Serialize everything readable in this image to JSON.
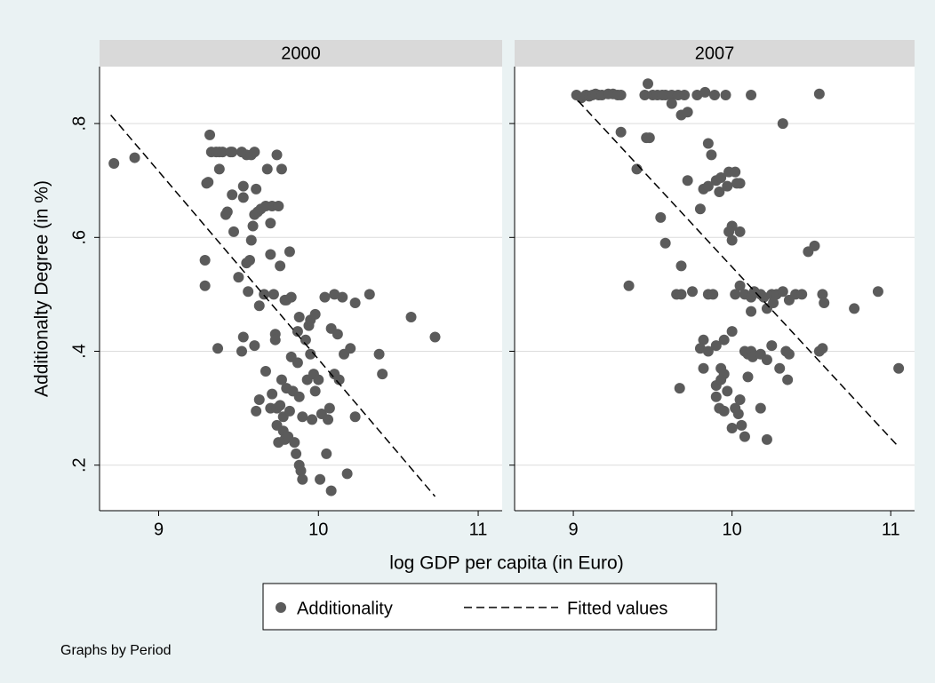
{
  "chart_data": {
    "type": "scatter",
    "x_label": "log GDP per capita (in Euro)",
    "y_label": "Additionalty Degree (in %)",
    "note": "Graphs by Period",
    "xlim": [
      8.63,
      11.15
    ],
    "ylim": [
      0.12,
      0.9
    ],
    "xticks": [
      9,
      10,
      11
    ],
    "yticks": [
      {
        "value": 0.2,
        "label": ".2"
      },
      {
        "value": 0.4,
        "label": ".4"
      },
      {
        "value": 0.6,
        "label": ".6"
      },
      {
        "value": 0.8,
        "label": ".8"
      }
    ],
    "grid": true,
    "series": [
      {
        "name": "Additionality",
        "color": "#5b5b5b"
      },
      {
        "name": "Fitted values",
        "color": "#000000"
      }
    ],
    "panels": [
      {
        "title": "2000",
        "series": [
          {
            "x": [
              8.72,
              8.85,
              9.3,
              9.31,
              9.32,
              9.33,
              9.36,
              9.38,
              9.38,
              9.4,
              9.42,
              9.43,
              9.46,
              9.46,
              9.47,
              9.5,
              9.52,
              9.53,
              9.53,
              9.55,
              9.55,
              9.56,
              9.57,
              9.58,
              9.58,
              9.59,
              9.6,
              9.61,
              9.62,
              9.63,
              9.64,
              9.66,
              9.67,
              9.68,
              9.7,
              9.7,
              9.71,
              9.72,
              9.74,
              9.75,
              9.76,
              9.77,
              9.79,
              9.8,
              9.82,
              9.83,
              9.29,
              9.29,
              9.37,
              9.53,
              9.52,
              9.6,
              9.61,
              9.63,
              9.67,
              9.7,
              9.71,
              9.73,
              9.73,
              9.74,
              9.74,
              9.75,
              9.76,
              9.77,
              9.78,
              9.78,
              9.79,
              9.8,
              9.81,
              9.82,
              9.83,
              9.84,
              9.85,
              9.86,
              9.87,
              9.87,
              9.88,
              9.88,
              9.89,
              9.9,
              9.9,
              9.92,
              9.93,
              9.94,
              9.95,
              9.95,
              9.96,
              9.97,
              9.98,
              9.98,
              10.0,
              10.01,
              10.02,
              10.04,
              10.05,
              10.06,
              10.07,
              10.08,
              10.1,
              10.1,
              10.12,
              10.13,
              10.15,
              10.16,
              10.18,
              10.2,
              10.23,
              10.23,
              10.32,
              10.38,
              10.4,
              10.58,
              10.73,
              10.08,
              9.88,
              9.6,
              9.45
            ],
            "values": [
              0.73,
              0.74,
              0.695,
              0.697,
              0.78,
              0.75,
              0.75,
              0.72,
              0.75,
              0.75,
              0.64,
              0.645,
              0.75,
              0.675,
              0.61,
              0.53,
              0.75,
              0.69,
              0.67,
              0.745,
              0.555,
              0.505,
              0.56,
              0.745,
              0.595,
              0.62,
              0.64,
              0.685,
              0.645,
              0.48,
              0.65,
              0.5,
              0.655,
              0.72,
              0.625,
              0.57,
              0.655,
              0.5,
              0.745,
              0.655,
              0.55,
              0.72,
              0.49,
              0.49,
              0.575,
              0.495,
              0.56,
              0.515,
              0.405,
              0.425,
              0.4,
              0.41,
              0.295,
              0.315,
              0.365,
              0.3,
              0.325,
              0.43,
              0.42,
              0.3,
              0.27,
              0.24,
              0.305,
              0.35,
              0.285,
              0.26,
              0.245,
              0.335,
              0.25,
              0.295,
              0.39,
              0.33,
              0.24,
              0.22,
              0.435,
              0.38,
              0.32,
              0.2,
              0.19,
              0.175,
              0.285,
              0.42,
              0.35,
              0.445,
              0.455,
              0.395,
              0.28,
              0.36,
              0.465,
              0.33,
              0.35,
              0.175,
              0.29,
              0.495,
              0.22,
              0.28,
              0.3,
              0.44,
              0.5,
              0.36,
              0.43,
              0.35,
              0.495,
              0.395,
              0.185,
              0.405,
              0.485,
              0.285,
              0.5,
              0.395,
              0.36,
              0.46,
              0.425,
              0.155,
              0.46,
              0.75,
              0.75
            ]
          },
          {
            "x": [
              8.7,
              10.73
            ],
            "values": [
              0.815,
              0.145
            ]
          }
        ]
      },
      {
        "title": "2007",
        "series": [
          {
            "x": [
              9.02,
              9.05,
              9.08,
              9.1,
              9.12,
              9.14,
              9.16,
              9.18,
              9.22,
              9.25,
              9.28,
              9.3,
              9.45,
              9.47,
              9.5,
              9.53,
              9.56,
              9.58,
              9.62,
              9.66,
              9.7,
              9.78,
              9.83,
              9.89,
              9.96,
              10.12,
              10.55,
              9.62,
              9.68,
              9.72,
              9.3,
              9.46,
              9.48,
              10.32,
              9.4,
              9.72,
              9.85,
              9.87,
              9.9,
              9.93,
              9.98,
              10.02,
              10.05,
              9.82,
              9.85,
              9.92,
              9.97,
              10.03,
              10.0,
              10.05,
              9.55,
              9.58,
              9.8,
              9.98,
              10.0,
              9.35,
              9.68,
              9.65,
              9.68,
              9.75,
              9.85,
              9.88,
              10.02,
              10.05,
              10.08,
              10.12,
              10.14,
              10.18,
              10.2,
              10.25,
              10.28,
              10.32,
              10.36,
              10.4,
              10.44,
              10.22,
              10.26,
              10.12,
              10.48,
              10.52,
              10.57,
              10.58,
              10.77,
              10.92,
              10.55,
              10.57,
              11.05,
              9.82,
              9.8,
              9.85,
              9.9,
              9.95,
              10.0,
              10.08,
              10.1,
              10.12,
              10.13,
              10.18,
              10.22,
              10.25,
              10.3,
              10.35,
              10.34,
              10.36,
              9.93,
              9.95,
              9.9,
              9.93,
              9.97,
              9.9,
              9.92,
              9.95,
              10.02,
              10.05,
              10.04,
              10.06,
              10.0,
              10.08,
              10.18,
              10.22,
              9.82,
              9.67,
              10.1
            ],
            "values": [
              0.85,
              0.845,
              0.85,
              0.848,
              0.85,
              0.852,
              0.85,
              0.85,
              0.852,
              0.852,
              0.85,
              0.85,
              0.85,
              0.87,
              0.85,
              0.85,
              0.85,
              0.85,
              0.85,
              0.85,
              0.85,
              0.85,
              0.855,
              0.85,
              0.85,
              0.85,
              0.852,
              0.835,
              0.815,
              0.82,
              0.785,
              0.775,
              0.775,
              0.8,
              0.72,
              0.7,
              0.765,
              0.745,
              0.7,
              0.705,
              0.715,
              0.715,
              0.695,
              0.685,
              0.69,
              0.68,
              0.69,
              0.695,
              0.62,
              0.61,
              0.635,
              0.59,
              0.65,
              0.61,
              0.595,
              0.515,
              0.55,
              0.5,
              0.5,
              0.505,
              0.5,
              0.5,
              0.5,
              0.515,
              0.5,
              0.495,
              0.505,
              0.5,
              0.495,
              0.5,
              0.5,
              0.505,
              0.49,
              0.5,
              0.5,
              0.475,
              0.485,
              0.47,
              0.575,
              0.585,
              0.5,
              0.485,
              0.475,
              0.505,
              0.4,
              0.405,
              0.37,
              0.42,
              0.405,
              0.4,
              0.41,
              0.42,
              0.435,
              0.4,
              0.395,
              0.4,
              0.39,
              0.395,
              0.385,
              0.41,
              0.37,
              0.35,
              0.4,
              0.395,
              0.37,
              0.36,
              0.34,
              0.35,
              0.33,
              0.32,
              0.3,
              0.295,
              0.3,
              0.315,
              0.29,
              0.27,
              0.265,
              0.25,
              0.3,
              0.245,
              0.37,
              0.335,
              0.355
            ]
          },
          {
            "x": [
              9.03,
              11.05
            ],
            "values": [
              0.84,
              0.232
            ]
          }
        ]
      }
    ]
  }
}
